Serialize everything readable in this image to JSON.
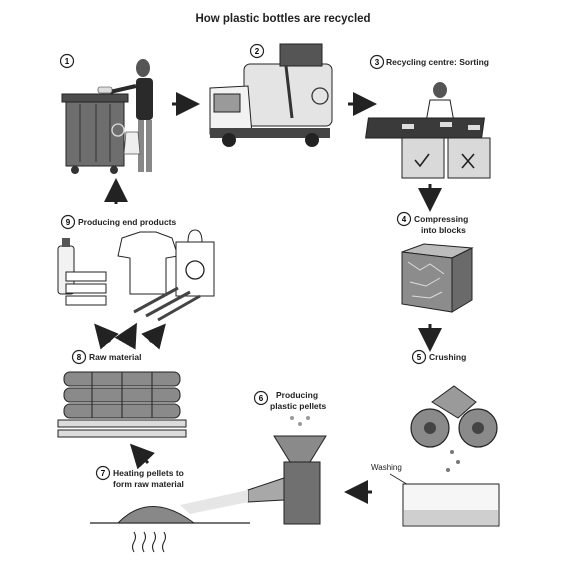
{
  "title": "How plastic bottles are recycled",
  "steps": [
    {
      "number": "1",
      "label_lines": []
    },
    {
      "number": "2",
      "label_lines": []
    },
    {
      "number": "3",
      "label_lines": [
        "Recycling centre: Sorting"
      ]
    },
    {
      "number": "4",
      "label_lines": [
        "Compressing",
        "into blocks"
      ]
    },
    {
      "number": "5",
      "label_lines": [
        "Crushing"
      ]
    },
    {
      "number": "6",
      "label_lines": [
        "Producing",
        "plastic pellets"
      ]
    },
    {
      "number": "7",
      "label_lines": [
        "Heating pellets to",
        "form raw material"
      ]
    },
    {
      "number": "8",
      "label_lines": [
        "Raw material"
      ]
    },
    {
      "number": "9",
      "label_lines": [
        "Producing end products"
      ]
    }
  ],
  "washing_label": "Washing",
  "colors": {
    "ink": "#222222",
    "mid": "#8a8a8a",
    "light": "#d2d2d2",
    "paper": "#ffffff"
  }
}
